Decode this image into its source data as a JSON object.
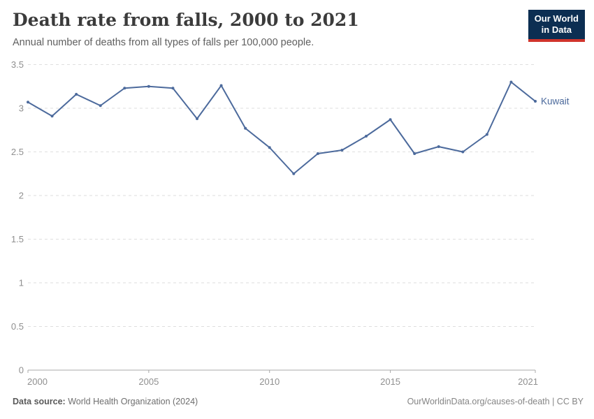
{
  "header": {
    "title": "Death rate from falls, 2000 to 2021",
    "subtitle": "Annual number of deaths from all types of falls per 100,000 people.",
    "logo": {
      "line1": "Our World",
      "line2": "in Data"
    }
  },
  "chart_data": {
    "type": "line",
    "title": "Death rate from falls, 2000 to 2021",
    "subtitle": "Annual number of deaths from all types of falls per 100,000 people.",
    "x": [
      2000,
      2001,
      2002,
      2003,
      2004,
      2005,
      2006,
      2007,
      2008,
      2009,
      2010,
      2011,
      2012,
      2013,
      2014,
      2015,
      2016,
      2017,
      2018,
      2019,
      2020,
      2021
    ],
    "series": [
      {
        "name": "Kuwait",
        "color": "#4c6a9c",
        "values": [
          3.07,
          2.91,
          3.16,
          3.03,
          3.23,
          3.25,
          3.23,
          2.88,
          3.26,
          2.77,
          2.55,
          2.25,
          2.48,
          2.52,
          2.68,
          2.87,
          2.48,
          2.56,
          2.5,
          2.7,
          3.3,
          3.08
        ]
      }
    ],
    "ylim": [
      0,
      3.5
    ],
    "yticks": [
      0,
      0.5,
      1,
      1.5,
      2,
      2.5,
      3,
      3.5
    ],
    "ytick_labels": [
      "0",
      "0.5",
      "1",
      "1.5",
      "2",
      "2.5",
      "3",
      "3.5"
    ],
    "xticks": [
      2000,
      2005,
      2010,
      2015,
      2021
    ],
    "xtick_labels": [
      "2000",
      "2005",
      "2010",
      "2015",
      "2021"
    ],
    "grid": "horizontal-dashed",
    "legend": "end-of-line-label",
    "end_label": "Kuwait",
    "xlabel": "",
    "ylabel": ""
  },
  "footer": {
    "source_label": "Data source:",
    "source_text": " World Health Organization (2024)",
    "rights": "OurWorldinData.org/causes-of-death | CC BY"
  },
  "colors": {
    "line": "#4c6a9c",
    "grid": "#dedede",
    "axis": "#a8a8a8",
    "tick_label": "#8f8f8f",
    "title": "#3b3b3b",
    "subtitle": "#5f5f5f",
    "logo_bg": "#0c2e52",
    "logo_stripe": "#d0342c"
  }
}
